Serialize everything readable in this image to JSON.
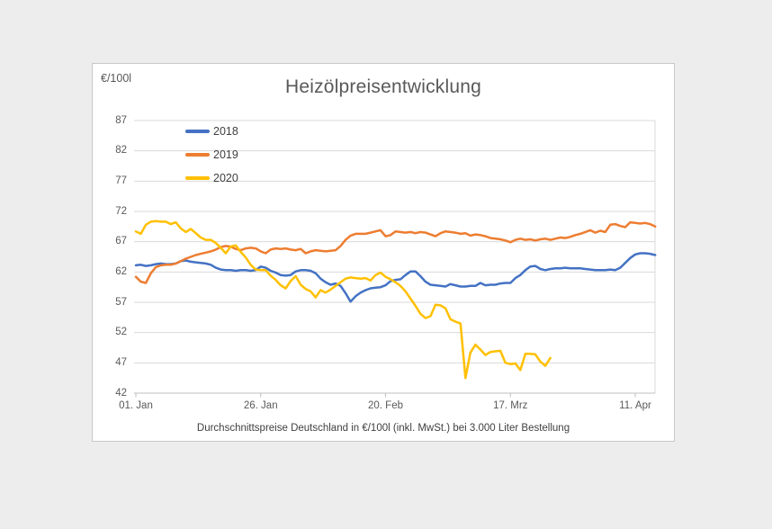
{
  "chart_data": {
    "type": "line",
    "title": "Heizölpreisentwicklung",
    "ylabel": "€/100l",
    "xlabel": "",
    "footnote": "Durchschnittspreise Deutschland in €/100l (inkl. MwSt.) bei 3.000 Liter Bestellung",
    "ylim": [
      42,
      87
    ],
    "y_ticks": [
      87,
      82,
      77,
      72,
      67,
      62,
      57,
      52,
      47,
      42
    ],
    "grid": "horizontal",
    "legend_position": "top-left-inside",
    "x_axis": {
      "tick_labels": [
        "01. Jan",
        "26. Jan",
        "20. Feb",
        "17. Mrz",
        "11. Apr"
      ],
      "tick_day_indices": [
        0,
        25,
        50,
        75,
        100
      ],
      "days_total": 105,
      "unit": "daily values starting 01. Jan"
    },
    "colors": {
      "grid": "#D9D9D9",
      "axis": "#BFBFBF",
      "tick_text": "#595959",
      "title_text": "#595959"
    },
    "series": [
      {
        "name": "2018",
        "color": "#4472C4",
        "start_day_index": 0,
        "values": [
          63.1,
          63.2,
          63.0,
          63.1,
          63.3,
          63.4,
          63.3,
          63.3,
          63.4,
          63.8,
          63.9,
          63.7,
          63.6,
          63.5,
          63.4,
          63.2,
          62.7,
          62.4,
          62.3,
          62.3,
          62.2,
          62.3,
          62.3,
          62.2,
          62.3,
          62.9,
          62.7,
          62.2,
          61.9,
          61.5,
          61.4,
          61.5,
          62.1,
          62.3,
          62.3,
          62.2,
          61.8,
          60.9,
          60.3,
          59.9,
          60.1,
          59.7,
          58.5,
          57.1,
          58.0,
          58.6,
          59.0,
          59.3,
          59.4,
          59.5,
          59.8,
          60.5,
          60.7,
          60.8,
          61.5,
          62.1,
          62.1,
          61.3,
          60.4,
          59.9,
          59.8,
          59.7,
          59.6,
          60.0,
          59.8,
          59.6,
          59.6,
          59.7,
          59.7,
          60.2,
          59.8,
          59.9,
          59.9,
          60.1,
          60.2,
          60.2,
          61.0,
          61.5,
          62.3,
          62.9,
          63.0,
          62.5,
          62.3,
          62.5,
          62.6,
          62.6,
          62.7,
          62.6,
          62.6,
          62.6,
          62.5,
          62.4,
          62.3,
          62.3,
          62.3,
          62.4,
          62.3,
          62.7,
          63.5,
          64.3,
          64.9,
          65.1,
          65.1,
          65.0,
          64.8
        ]
      },
      {
        "name": "2019",
        "color": "#ED7D31",
        "start_day_index": 0,
        "values": [
          61.2,
          60.4,
          60.2,
          61.8,
          62.8,
          63.1,
          63.2,
          63.2,
          63.4,
          63.8,
          64.2,
          64.5,
          64.8,
          65.0,
          65.2,
          65.4,
          65.7,
          66.1,
          66.3,
          66.2,
          65.8,
          65.6,
          65.9,
          66.0,
          65.9,
          65.4,
          65.1,
          65.7,
          65.9,
          65.8,
          65.9,
          65.7,
          65.6,
          65.8,
          65.1,
          65.4,
          65.6,
          65.5,
          65.4,
          65.5,
          65.6,
          66.3,
          67.3,
          68.0,
          68.3,
          68.3,
          68.3,
          68.5,
          68.7,
          68.9,
          67.9,
          68.1,
          68.7,
          68.6,
          68.5,
          68.6,
          68.4,
          68.6,
          68.5,
          68.2,
          67.9,
          68.4,
          68.7,
          68.6,
          68.5,
          68.3,
          68.4,
          68.0,
          68.2,
          68.1,
          67.9,
          67.6,
          67.5,
          67.4,
          67.2,
          66.9,
          67.3,
          67.5,
          67.3,
          67.4,
          67.2,
          67.4,
          67.5,
          67.3,
          67.5,
          67.7,
          67.6,
          67.8,
          68.1,
          68.3,
          68.6,
          68.9,
          68.5,
          68.8,
          68.6,
          69.8,
          69.9,
          69.6,
          69.4,
          70.2,
          70.1,
          70.0,
          70.1,
          69.9,
          69.5
        ]
      },
      {
        "name": "2020",
        "color": "#FFC000",
        "start_day_index": 0,
        "values": [
          68.7,
          68.3,
          69.8,
          70.3,
          70.4,
          70.3,
          70.3,
          69.9,
          70.2,
          69.2,
          68.6,
          69.1,
          68.4,
          67.7,
          67.3,
          67.3,
          66.8,
          66.0,
          65.1,
          66.2,
          66.4,
          65.3,
          64.4,
          63.2,
          62.4,
          62.3,
          62.3,
          61.4,
          60.7,
          59.8,
          59.3,
          60.5,
          61.3,
          59.9,
          59.2,
          58.8,
          57.8,
          59.0,
          58.6,
          59.1,
          59.7,
          60.3,
          60.9,
          61.1,
          61.0,
          60.9,
          61.0,
          60.6,
          61.5,
          61.9,
          61.2,
          60.8,
          60.3,
          59.7,
          58.8,
          57.6,
          56.4,
          55.1,
          54.4,
          54.7,
          56.6,
          56.5,
          56.0,
          54.2,
          53.8,
          53.5,
          44.5,
          48.7,
          50.0,
          49.2,
          48.3,
          48.8,
          48.9,
          49.0,
          47.0,
          46.8,
          46.9,
          45.8,
          48.5,
          48.5,
          48.4,
          47.2,
          46.5,
          47.8
        ]
      }
    ]
  }
}
